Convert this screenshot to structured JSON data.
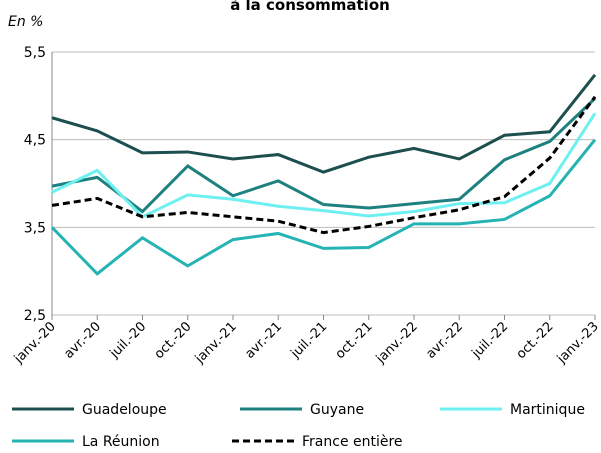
{
  "chart_data": {
    "type": "line",
    "title": "à la consommation",
    "y_label": "En %",
    "categories": [
      "janv.-20",
      "avr.-20",
      "juil.-20",
      "oct.-20",
      "janv.-21",
      "avr.-21",
      "juil.-21",
      "oct.-21",
      "janv.-22",
      "avr.-22",
      "juil.-22",
      "oct.-22",
      "janv.-23"
    ],
    "series": [
      {
        "name": "Guadeloupe",
        "color": "#1d4f4f",
        "dash": false,
        "values": [
          4.75,
          4.6,
          4.35,
          4.36,
          4.28,
          4.33,
          4.13,
          4.3,
          4.4,
          4.28,
          4.55,
          4.59,
          5.24
        ]
      },
      {
        "name": "Guyane",
        "color": "#1f8080",
        "dash": false,
        "values": [
          3.97,
          4.07,
          3.68,
          4.2,
          3.86,
          4.03,
          3.76,
          3.72,
          3.77,
          3.82,
          4.27,
          4.48,
          4.97
        ]
      },
      {
        "name": "Martinique",
        "color": "#6ff0f0",
        "dash": false,
        "values": [
          3.9,
          4.15,
          3.62,
          3.87,
          3.82,
          3.74,
          3.69,
          3.63,
          3.68,
          3.77,
          3.78,
          4.0,
          4.8
        ]
      },
      {
        "name": "La Réunion",
        "color": "#26b3b3",
        "dash": false,
        "values": [
          3.5,
          2.97,
          3.38,
          3.06,
          3.36,
          3.43,
          3.26,
          3.27,
          3.54,
          3.54,
          3.59,
          3.86,
          4.5
        ]
      },
      {
        "name": "France entière",
        "color": "#000000",
        "dash": true,
        "values": [
          3.75,
          3.83,
          3.62,
          3.67,
          3.62,
          3.57,
          3.44,
          3.51,
          3.61,
          3.7,
          3.85,
          4.29,
          4.99
        ]
      }
    ],
    "ylim": [
      2.5,
      5.5
    ],
    "yticks": [
      {
        "value": 2.5,
        "label": "2,5"
      },
      {
        "value": 3.5,
        "label": "3,5"
      },
      {
        "value": 4.5,
        "label": "4,5"
      },
      {
        "value": 5.5,
        "label": "5,5"
      }
    ],
    "grid": true
  }
}
